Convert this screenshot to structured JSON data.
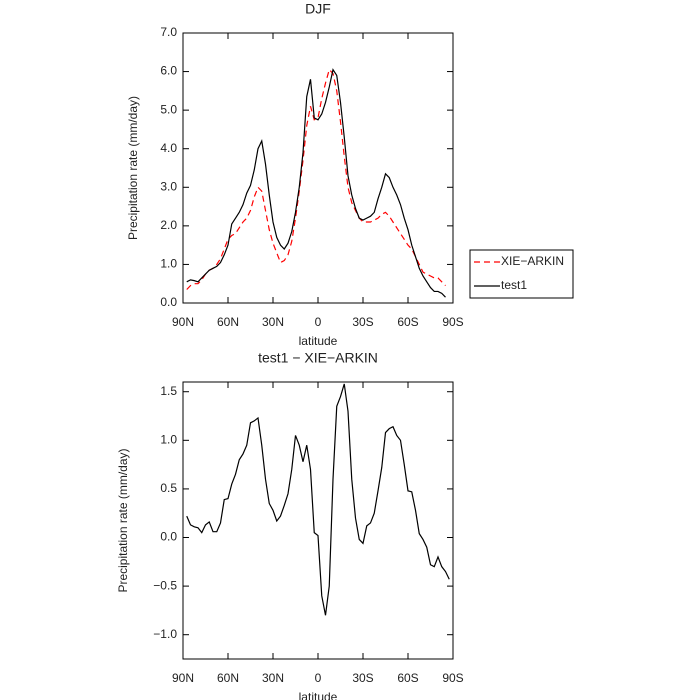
{
  "chart_data": [
    {
      "type": "line",
      "title": "DJF",
      "x_label": "latitude",
      "y_label": "Precipitation rate (mm/day)",
      "x": [
        87.5,
        85,
        82.5,
        80,
        77.5,
        75,
        72.5,
        70,
        67.5,
        65,
        62.5,
        60,
        57.5,
        55,
        52.5,
        50,
        47.5,
        45,
        42.5,
        40,
        37.5,
        35,
        32.5,
        30,
        27.5,
        25,
        22.5,
        20,
        17.5,
        15,
        12.5,
        10,
        7.5,
        5,
        2.5,
        0,
        -2.5,
        -5,
        -7.5,
        -10,
        -12.5,
        -15,
        -17.5,
        -20,
        -22.5,
        -25,
        -27.5,
        -30,
        -32.5,
        -35,
        -37.5,
        -40,
        -42.5,
        -45,
        -47.5,
        -50,
        -52.5,
        -55,
        -57.5,
        -60,
        -62.5,
        -65,
        -67.5,
        -70,
        -72.5,
        -75,
        -77.5,
        -80,
        -82.5,
        -85
      ],
      "series": [
        {
          "name": "XIE−ARKIN",
          "color": "#ff0000",
          "linestyle": "dashed",
          "values": [
            0.35,
            0.45,
            0.5,
            0.5,
            0.6,
            0.75,
            0.85,
            0.9,
            1.0,
            1.15,
            1.4,
            1.65,
            1.75,
            1.8,
            1.95,
            2.1,
            2.2,
            2.4,
            2.75,
            3.0,
            2.9,
            2.4,
            1.9,
            1.55,
            1.3,
            1.05,
            1.1,
            1.25,
            1.6,
            2.2,
            2.9,
            3.7,
            4.6,
            5.1,
            4.75,
            4.8,
            5.3,
            5.7,
            6.05,
            5.95,
            5.5,
            4.7,
            3.8,
            3.0,
            2.6,
            2.4,
            2.2,
            2.1,
            2.1,
            2.1,
            2.15,
            2.2,
            2.3,
            2.35,
            2.25,
            2.1,
            1.95,
            1.8,
            1.65,
            1.5,
            1.4,
            1.2,
            1.0,
            0.8,
            0.75,
            0.7,
            0.65,
            0.65,
            0.55,
            0.45
          ]
        },
        {
          "name": "test1",
          "color": "#000000",
          "linestyle": "solid",
          "values": [
            0.55,
            0.6,
            0.58,
            0.55,
            0.65,
            0.75,
            0.85,
            0.9,
            0.95,
            1.05,
            1.25,
            1.5,
            2.05,
            2.2,
            2.35,
            2.55,
            2.85,
            3.05,
            3.45,
            4.0,
            4.2,
            3.6,
            2.8,
            2.1,
            1.7,
            1.5,
            1.4,
            1.55,
            1.85,
            2.35,
            3.0,
            3.9,
            5.35,
            5.8,
            4.8,
            4.75,
            4.9,
            5.2,
            5.6,
            6.05,
            5.9,
            5.2,
            4.3,
            3.3,
            2.8,
            2.45,
            2.2,
            2.15,
            2.2,
            2.25,
            2.35,
            2.7,
            3.0,
            3.35,
            3.25,
            3.0,
            2.8,
            2.55,
            2.2,
            1.9,
            1.5,
            1.2,
            0.9,
            0.7,
            0.55,
            0.4,
            0.3,
            0.3,
            0.25,
            0.15
          ]
        }
      ],
      "xlim": [
        90,
        -90
      ],
      "xticks": [
        {
          "value": 90,
          "label": "90N"
        },
        {
          "value": 60,
          "label": "60N"
        },
        {
          "value": 30,
          "label": "30N"
        },
        0,
        {
          "value": -30,
          "label": "30S"
        },
        {
          "value": -60,
          "label": "60S"
        },
        {
          "value": -90,
          "label": "90S"
        }
      ],
      "ylim": [
        0,
        7
      ],
      "yticks": [
        {
          "value": 0,
          "label": "0.0"
        },
        {
          "value": 1,
          "label": "1.0"
        },
        {
          "value": 2,
          "label": "2.0"
        },
        {
          "value": 3,
          "label": "3.0"
        },
        {
          "value": 4,
          "label": "4.0"
        },
        {
          "value": 5,
          "label": "5.0"
        },
        {
          "value": 6,
          "label": "6.0"
        },
        {
          "value": 7,
          "label": "7.0"
        }
      ],
      "grid": false,
      "legend": "right"
    },
    {
      "type": "line",
      "title": "test1 − XIE−ARKIN",
      "x_label": "latitude",
      "y_label": "Precipitation rate (mm/day)",
      "x": [
        87.5,
        85,
        82.5,
        80,
        77.5,
        75,
        72.5,
        70,
        67.5,
        65,
        62.5,
        60,
        57.5,
        55,
        52.5,
        50,
        47.5,
        45,
        42.5,
        40,
        37.5,
        35,
        32.5,
        30,
        27.5,
        25,
        22.5,
        20,
        17.5,
        15,
        12.5,
        10,
        7.5,
        5,
        2.5,
        0,
        -2.5,
        -5,
        -7.5,
        -10,
        -12.5,
        -15,
        -17.5,
        -20,
        -22.5,
        -25,
        -27.5,
        -30,
        -32.5,
        -35,
        -37.5,
        -40,
        -42.5,
        -45,
        -47.5,
        -50,
        -52.5,
        -55,
        -57.5,
        -60,
        -62.5,
        -65,
        -67.5,
        -70,
        -72.5,
        -75,
        -77.5,
        -80,
        -82.5,
        -85,
        -87.5
      ],
      "color": "#000000",
      "values": [
        0.22,
        0.13,
        0.11,
        0.1,
        0.05,
        0.13,
        0.16,
        0.06,
        0.06,
        0.15,
        0.39,
        0.4,
        0.55,
        0.65,
        0.8,
        0.86,
        0.95,
        1.18,
        1.2,
        1.23,
        0.95,
        0.6,
        0.35,
        0.28,
        0.17,
        0.22,
        0.33,
        0.45,
        0.7,
        1.05,
        0.95,
        0.78,
        0.95,
        0.7,
        0.05,
        0.02,
        -0.6,
        -0.8,
        -0.5,
        0.6,
        1.35,
        1.45,
        1.58,
        1.3,
        0.6,
        0.2,
        -0.02,
        -0.06,
        0.12,
        0.15,
        0.25,
        0.48,
        0.72,
        1.08,
        1.12,
        1.14,
        1.05,
        1.0,
        0.75,
        0.48,
        0.47,
        0.28,
        0.04,
        -0.02,
        -0.1,
        -0.28,
        -0.3,
        -0.2,
        -0.3,
        -0.35,
        -0.43
      ],
      "xlim": [
        90,
        -90
      ],
      "xticks": [
        {
          "value": 90,
          "label": "90N"
        },
        {
          "value": 60,
          "label": "60N"
        },
        {
          "value": 30,
          "label": "30N"
        },
        0,
        {
          "value": -30,
          "label": "30S"
        },
        {
          "value": -60,
          "label": "60S"
        },
        {
          "value": -90,
          "label": "90S"
        }
      ],
      "ylim": [
        -1.25,
        1.6
      ],
      "yticks": [
        {
          "value": -1,
          "label": "−1.0"
        },
        {
          "value": -0.5,
          "label": "−0.5"
        },
        {
          "value": 0,
          "label": "0.0"
        },
        {
          "value": 0.5,
          "label": "0.5"
        },
        {
          "value": 1,
          "label": "1.0"
        },
        {
          "value": 1.5,
          "label": "1.5"
        }
      ],
      "grid": false
    }
  ]
}
